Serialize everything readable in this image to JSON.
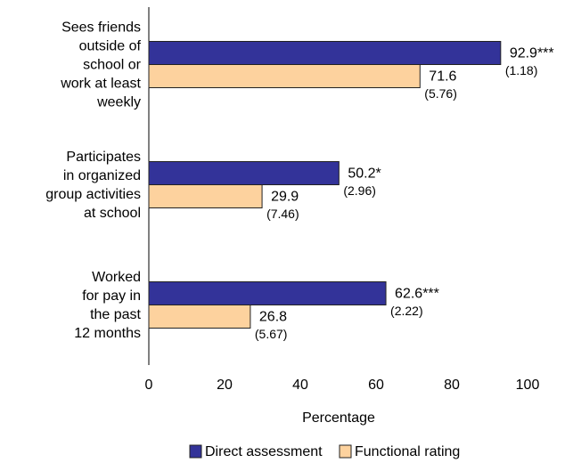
{
  "chart_data": {
    "type": "bar",
    "orientation": "horizontal",
    "categories": [
      "Sees friends\noutside of\nschool or\nwork at least\nweekly",
      "Participates\nin organized\ngroup activities\nat school",
      "Worked\nfor pay in\nthe past\n12 months"
    ],
    "series": [
      {
        "name": "Direct assessment",
        "color": "#333399",
        "values": [
          92.9,
          50.2,
          62.6
        ],
        "value_labels": [
          "92.9***",
          "50.2*",
          "62.6***"
        ],
        "error_labels": [
          "(1.18)",
          "(2.96)",
          "(2.22)"
        ]
      },
      {
        "name": "Functional rating",
        "color": "#fdd29e",
        "values": [
          71.6,
          29.9,
          26.8
        ],
        "value_labels": [
          "71.6",
          "29.9",
          "26.8"
        ],
        "error_labels": [
          "(5.76)",
          "(7.46)",
          "(5.67)"
        ]
      }
    ],
    "xlabel": "Percentage",
    "xlim": [
      0,
      100
    ],
    "xticks": [
      0,
      20,
      40,
      60,
      80,
      100
    ],
    "legend": "bottom"
  }
}
